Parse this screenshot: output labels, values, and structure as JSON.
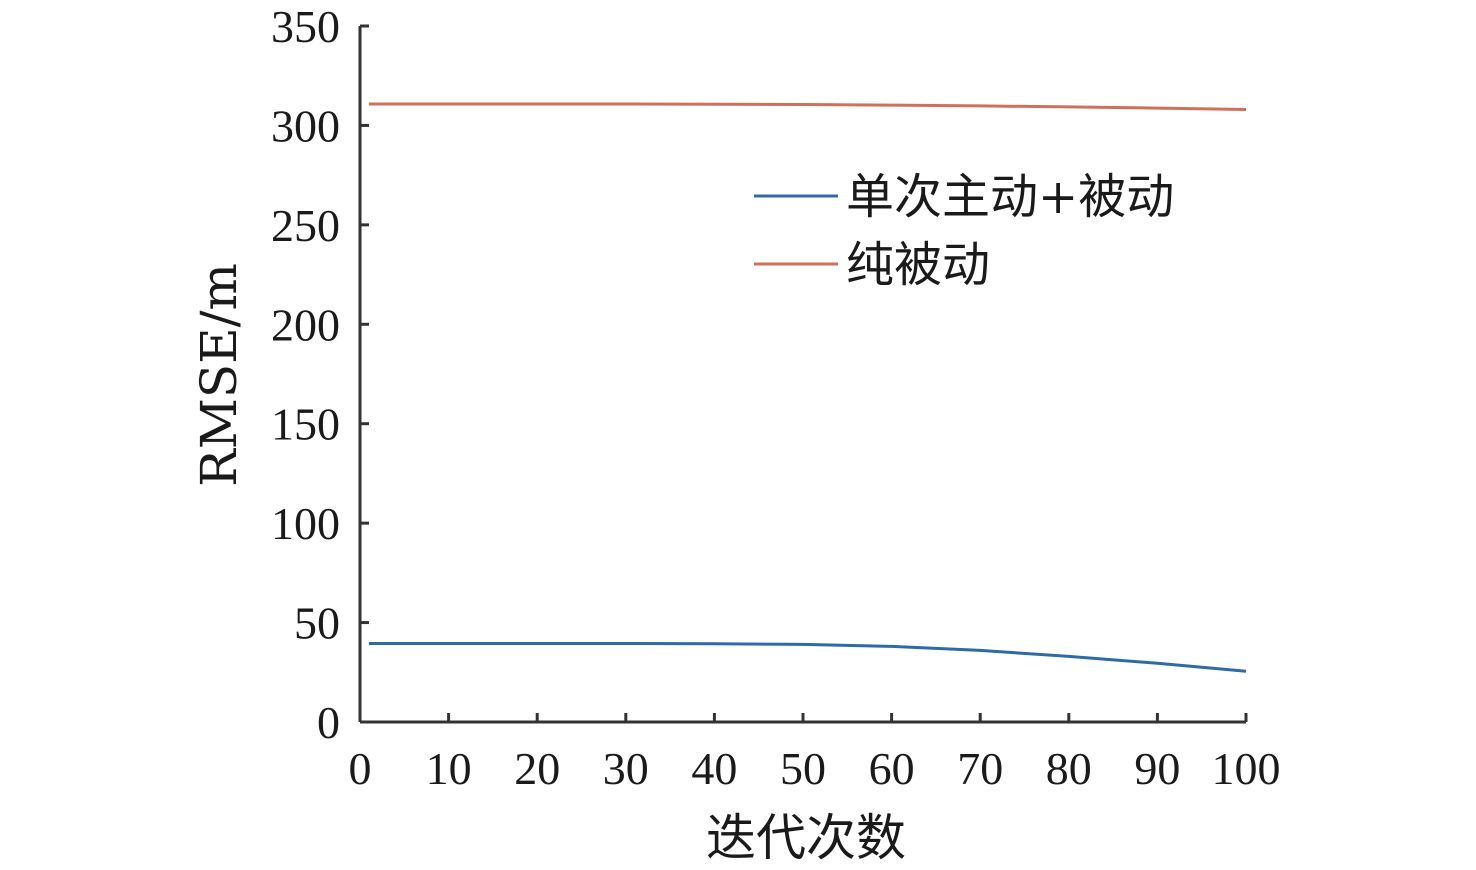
{
  "chart_data": {
    "type": "line",
    "xlabel": "迭代次数",
    "ylabel": "RMSE/m",
    "xlim": [
      0,
      100
    ],
    "ylim": [
      0,
      350
    ],
    "xticks": [
      0,
      10,
      20,
      30,
      40,
      50,
      60,
      70,
      80,
      90,
      100
    ],
    "yticks": [
      0,
      50,
      100,
      150,
      200,
      250,
      300,
      350
    ],
    "grid": false,
    "legend_position": "upper-right",
    "x": [
      1,
      10,
      20,
      30,
      40,
      50,
      60,
      70,
      80,
      90,
      100
    ],
    "series": [
      {
        "name": "单次主动+被动",
        "color": "#2e6aa8",
        "values": [
          39.5,
          39.5,
          39.5,
          39.5,
          39.4,
          39.0,
          38.0,
          36.0,
          33.0,
          29.5,
          25.5
        ]
      },
      {
        "name": "纯被动",
        "color": "#d0705a",
        "values": [
          310.8,
          310.8,
          310.8,
          310.8,
          310.7,
          310.5,
          310.2,
          309.8,
          309.3,
          308.7,
          308.0
        ]
      }
    ]
  }
}
